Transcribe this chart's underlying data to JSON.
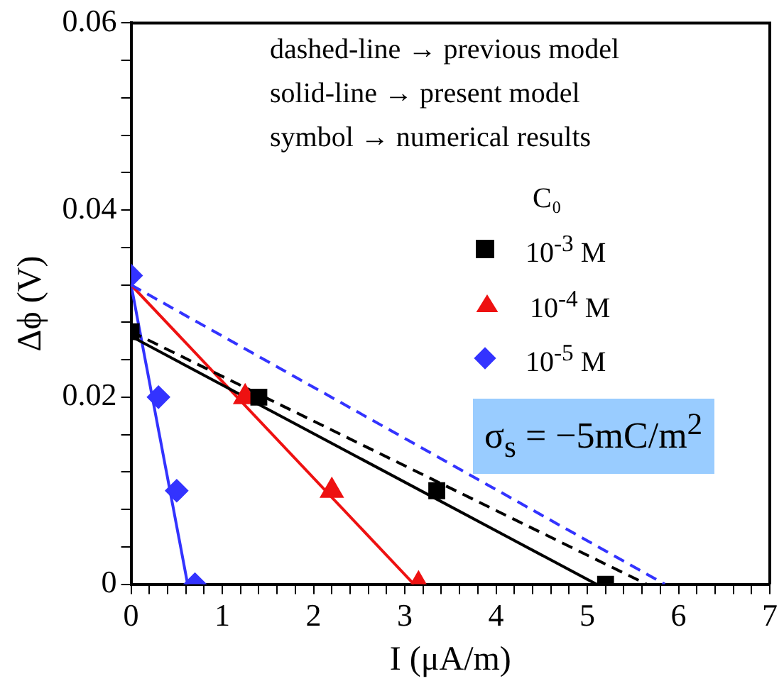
{
  "chart_data": {
    "type": "scatter",
    "xlabel": "I (μA/m)",
    "ylabel": "Δϕ (V)",
    "legend_title": "C₀",
    "legend": "top right",
    "grid": false,
    "xlim": [
      0,
      7
    ],
    "ylim": [
      0,
      0.06
    ],
    "xticks": [
      0,
      {
        "value": 0.2,
        "label": null
      },
      {
        "value": 0.4,
        "label": null
      },
      {
        "value": 0.6,
        "label": null
      },
      {
        "value": 0.8,
        "label": null
      },
      1,
      {
        "value": 1.2,
        "label": null
      },
      {
        "value": 1.4,
        "label": null
      },
      {
        "value": 1.6,
        "label": null
      },
      {
        "value": 1.8,
        "label": null
      },
      2,
      {
        "value": 2.2,
        "label": null
      },
      {
        "value": 2.4,
        "label": null
      },
      {
        "value": 2.6,
        "label": null
      },
      {
        "value": 2.8,
        "label": null
      },
      3,
      {
        "value": 3.2,
        "label": null
      },
      {
        "value": 3.4,
        "label": null
      },
      {
        "value": 3.6,
        "label": null
      },
      {
        "value": 3.8,
        "label": null
      },
      4,
      {
        "value": 4.2,
        "label": null
      },
      {
        "value": 4.4,
        "label": null
      },
      {
        "value": 4.6,
        "label": null
      },
      {
        "value": 4.8,
        "label": null
      },
      5,
      {
        "value": 5.2,
        "label": null
      },
      {
        "value": 5.4,
        "label": null
      },
      {
        "value": 5.6,
        "label": null
      },
      {
        "value": 5.8,
        "label": null
      },
      6,
      {
        "value": 6.2,
        "label": null
      },
      {
        "value": 6.4,
        "label": null
      },
      {
        "value": 6.6,
        "label": null
      },
      {
        "value": 6.8,
        "label": null
      },
      7
    ],
    "yticks": [
      0,
      {
        "value": 0.004,
        "label": null
      },
      {
        "value": 0.008,
        "label": null
      },
      {
        "value": 0.012,
        "label": null
      },
      {
        "value": 0.016,
        "label": null
      },
      0.02,
      {
        "value": 0.024,
        "label": null
      },
      {
        "value": 0.028,
        "label": null
      },
      {
        "value": 0.032,
        "label": null
      },
      {
        "value": 0.036,
        "label": null
      },
      0.04,
      {
        "value": 0.044,
        "label": null
      },
      {
        "value": 0.048,
        "label": null
      },
      {
        "value": 0.052,
        "label": null
      },
      {
        "value": 0.056,
        "label": null
      },
      0.06
    ],
    "annotations": [
      "dashed-line → previous model",
      "solid-line → present model",
      "symbol → numerical results",
      "σ$_{s}$ = −5mC/m$^{2}$"
    ],
    "series": [
      {
        "type": "line",
        "line_style": "dashed",
        "marker": "none",
        "color": "#3333ff",
        "x": [
          0,
          5.85
        ],
        "values": [
          0.032,
          0
        ]
      },
      {
        "type": "line",
        "line_style": "dashed",
        "marker": "none",
        "color": "#000000",
        "x": [
          0,
          5.65
        ],
        "values": [
          0.027,
          0
        ]
      },
      {
        "type": "line",
        "line_style": "solid",
        "marker": "none",
        "color": "#000000",
        "x": [
          0,
          5.1
        ],
        "values": [
          0.0265,
          0
        ]
      },
      {
        "type": "line",
        "line_style": "solid",
        "marker": "none",
        "color": "#ee1111",
        "x": [
          0,
          3.1
        ],
        "values": [
          0.032,
          0
        ]
      },
      {
        "type": "line",
        "line_style": "solid",
        "marker": "none",
        "color": "#3333ff",
        "x": [
          0,
          0.62
        ],
        "values": [
          0.032,
          0
        ]
      },
      {
        "type": "scatter",
        "name": "10$^{-3}$ M",
        "marker": "square",
        "color": "#000000",
        "x": [
          0,
          1.4,
          3.35,
          5.2
        ],
        "values": [
          0.027,
          0.02,
          0.01,
          0
        ]
      },
      {
        "type": "scatter",
        "name": "10$^{-4}$ M",
        "marker": "triangle",
        "color": "#ee1111",
        "x": [
          1.25,
          2.2,
          3.15
        ],
        "values": [
          0.02,
          0.01,
          0
        ]
      },
      {
        "type": "scatter",
        "name": "10$^{-5}$ M",
        "marker": "diamond",
        "color": "#3333ff",
        "x": [
          0,
          0.3,
          0.5,
          0.7
        ],
        "values": [
          0.033,
          0.02,
          0.01,
          0
        ]
      }
    ]
  }
}
